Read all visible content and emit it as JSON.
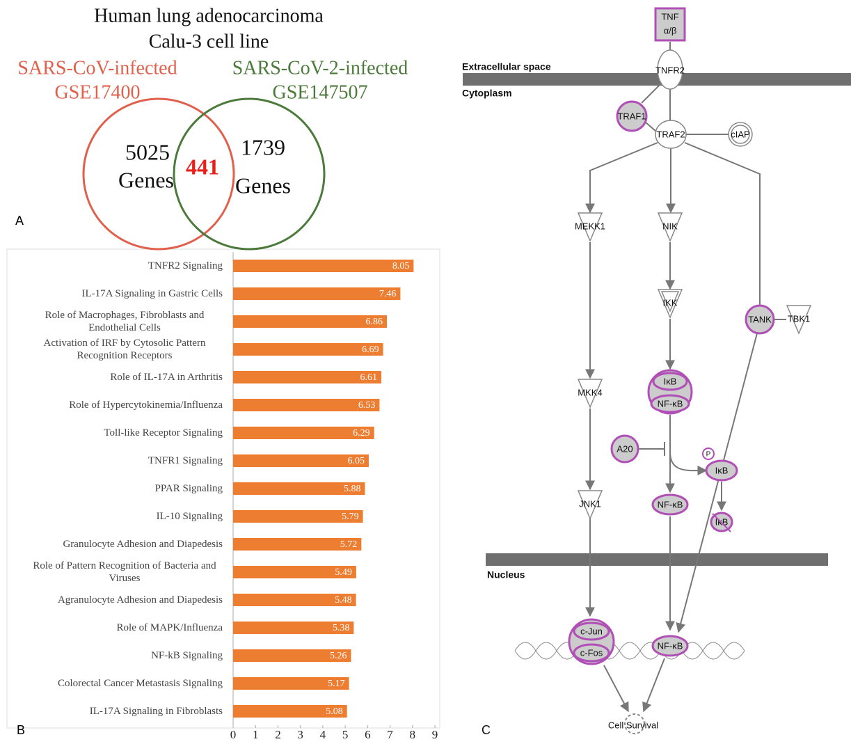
{
  "venn": {
    "title": [
      "Human lung adenocarcinoma",
      "Calu-3 cell line"
    ],
    "sets": [
      {
        "name": "SARS-CoV-infected",
        "dataset": "GSE17400",
        "color": "#e0604c",
        "count": 5025,
        "unit": "Genes"
      },
      {
        "name": "SARS-CoV-2-infected",
        "dataset": "GSE147507",
        "color": "#4b7a3a",
        "count": 1739,
        "unit": "Genes"
      }
    ],
    "overlap": 441,
    "overlap_color": "#e8201c",
    "panel_label": "A"
  },
  "chart_data": {
    "type": "bar",
    "orientation": "horizontal",
    "panel_label": "B",
    "categories": [
      "TNFR2 Signaling",
      "IL-17A Signaling in Gastric Cells",
      "Role of Macrophages, Fibroblasts and Endothelial Cells",
      "Activation of IRF by Cytosolic Pattern Recognition Receptors",
      "Role of IL-17A in Arthritis",
      "Role of Hypercytokinemia/Influenza",
      "Toll-like Receptor Signaling",
      "TNFR1 Signaling",
      "PPAR Signaling",
      "IL-10 Signaling",
      "Granulocyte Adhesion and Diapedesis",
      "Role of Pattern Recognition of Bacteria and Viruses",
      "Agranulocyte Adhesion and Diapedesis",
      "Role of MAPK/Influenza",
      "NF-kB Signaling",
      "Colorectal Cancer Metastasis Signaling",
      "IL-17A Signaling in Fibroblasts"
    ],
    "values": [
      8.05,
      7.46,
      6.86,
      6.69,
      6.61,
      6.53,
      6.29,
      6.05,
      5.88,
      5.79,
      5.72,
      5.49,
      5.48,
      5.38,
      5.26,
      5.17,
      5.08
    ],
    "color": "#ed7d31",
    "xlim": [
      0,
      9
    ],
    "xticks": [
      0,
      1,
      2,
      3,
      4,
      5,
      6,
      7,
      8,
      9
    ]
  },
  "pathway": {
    "panel_label": "C",
    "compartments": [
      "Extracellular space",
      "Cytoplasm",
      "Nucleus"
    ],
    "nodes": [
      {
        "label": [
          "TNF",
          "α/β"
        ]
      },
      {
        "label": "TNFR2"
      },
      {
        "label": "TRAF1"
      },
      {
        "label": "TRAF2"
      },
      {
        "label": "cIAP"
      },
      {
        "label": "MEKK1"
      },
      {
        "label": "NIK"
      },
      {
        "label": "IKK"
      },
      {
        "label": "TANK"
      },
      {
        "label": "TBK1"
      },
      {
        "label": "MKK4"
      },
      {
        "label": "IκB"
      },
      {
        "label": "NF-κB"
      },
      {
        "label": "A20"
      },
      {
        "label": "P"
      },
      {
        "label": "IκB"
      },
      {
        "label": "JNK1"
      },
      {
        "label": "NF-κB"
      },
      {
        "label": "IκB"
      },
      {
        "label": "c-Jun"
      },
      {
        "label": "c-Fos"
      },
      {
        "label": "NF-κB"
      },
      {
        "label": "Cell Survival"
      }
    ]
  }
}
